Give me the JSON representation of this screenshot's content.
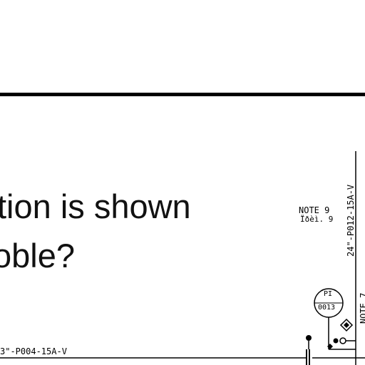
{
  "slide": {
    "question_line_1": "tion is shown",
    "question_line_2": "oble?"
  },
  "drawing": {
    "note_9": "NOTE 9",
    "note_9_sub": "Ïðèì. 9",
    "line_24": "24\"-P012-15A-V",
    "note_7": "NOTE 7",
    "line_3": "3\"-P004-15A-V",
    "instrument": {
      "tag": "PI",
      "number": "0013"
    }
  }
}
